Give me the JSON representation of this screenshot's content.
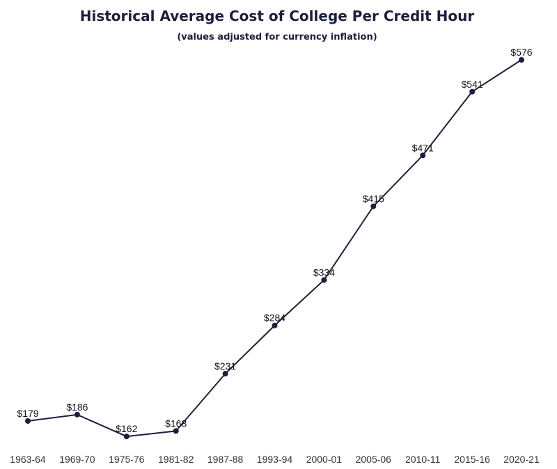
{
  "chart_data": {
    "type": "line",
    "title": "Historical Average Cost of College Per Credit Hour",
    "subtitle": "(values adjusted for currency inflation)",
    "xlabel": "",
    "ylabel": "",
    "categories": [
      "1963-64",
      "1969-70",
      "1975-76",
      "1981-82",
      "1987-88",
      "1993-94",
      "2000-01",
      "2005-06",
      "2010-11",
      "2015-16",
      "2020-21"
    ],
    "values": [
      179,
      186,
      162,
      168,
      231,
      284,
      334,
      415,
      471,
      541,
      576
    ],
    "data_labels": [
      "$179",
      "$186",
      "$162",
      "$168",
      "$231",
      "$284",
      "$334",
      "$415",
      "$471",
      "$541",
      "$576"
    ],
    "grid": false,
    "y_axis_visible": false,
    "colors": {
      "line": "#1b1f3b",
      "marker": "#1b1f3b",
      "title": "#1b1f3b"
    }
  }
}
